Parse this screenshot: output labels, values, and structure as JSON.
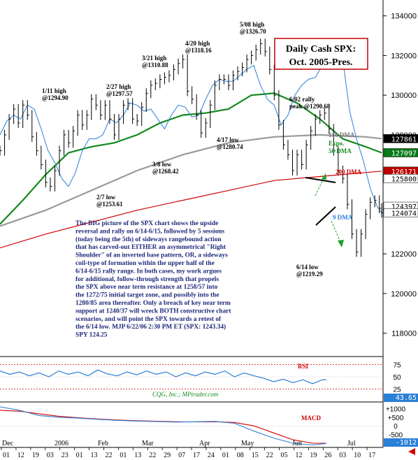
{
  "chart_data": {
    "type": "line",
    "title": "Daily Cash SPX:",
    "subtitle": "Oct. 2005-Pres.",
    "price_axis": {
      "ylim": [
        11700,
        13480
      ],
      "ticks": [
        {
          "v": 13400,
          "t": "134000"
        },
        {
          "v": 13200,
          "t": "132000"
        },
        {
          "v": 13000,
          "t": "130000"
        },
        {
          "v": 12800,
          "t": "128000"
        },
        {
          "v": 12200,
          "t": "122000"
        },
        {
          "v": 12000,
          "t": "120000"
        },
        {
          "v": 11800,
          "t": "118000"
        }
      ],
      "tags": [
        {
          "v": 12781,
          "t": "127861",
          "bg": "#000000",
          "fg": "#ffffff"
        },
        {
          "v": 12710,
          "t": "127097",
          "bg": "#0a7a1a",
          "fg": "#ffffff"
        },
        {
          "v": 12617,
          "t": "126171",
          "bg": "#c00000",
          "fg": "#ffffff"
        },
        {
          "v": 12580,
          "t": "125800",
          "bg": "#ffffff",
          "fg": "#000000"
        },
        {
          "v": 12440,
          "t": "124397",
          "bg": "#ffffff",
          "fg": "#000000"
        },
        {
          "v": 12407,
          "t": "124074",
          "bg": "#ffffff",
          "fg": "#000000"
        }
      ]
    },
    "series": [
      {
        "name": "150 DMA",
        "color": "#9a9a9a",
        "x": [
          0,
          20,
          40,
          60,
          80,
          100,
          120,
          140,
          160,
          167
        ],
        "y": [
          12340,
          12420,
          12520,
          12620,
          12700,
          12760,
          12790,
          12800,
          12790,
          12781
        ]
      },
      {
        "name": "Expo. 50 DMA",
        "color": "#138a1e",
        "x": [
          0,
          10,
          20,
          30,
          40,
          50,
          60,
          70,
          80,
          90,
          100,
          110,
          120,
          130,
          140,
          150,
          160,
          167
        ],
        "y": [
          12350,
          12470,
          12600,
          12710,
          12740,
          12760,
          12800,
          12860,
          12900,
          12910,
          12930,
          13000,
          13010,
          12960,
          12880,
          12780,
          12740,
          12710
        ]
      },
      {
        "name": "200 DMA",
        "color": "#d00000",
        "x": [
          0,
          20,
          40,
          60,
          80,
          100,
          120,
          140,
          160,
          167
        ],
        "y": [
          12230,
          12300,
          12360,
          12420,
          12470,
          12520,
          12570,
          12590,
          12610,
          12617
        ]
      },
      {
        "name": "9 DMA",
        "color": "#2a7fd6",
        "x": [
          0,
          3,
          6,
          9,
          12,
          15,
          18,
          21,
          24,
          27,
          30,
          33,
          36,
          39,
          42,
          45,
          48,
          51,
          54,
          57,
          60,
          63,
          66,
          69,
          72,
          75,
          78,
          81,
          84,
          87,
          90,
          93,
          96,
          99,
          102,
          105,
          108,
          111,
          114,
          117,
          120,
          123,
          126,
          129,
          132,
          135,
          138,
          141,
          144,
          147,
          150,
          153,
          156,
          159,
          162,
          165,
          167
        ],
        "y": [
          12800,
          12870,
          12900,
          12880,
          12950,
          12930,
          12830,
          12720,
          12660,
          12580,
          12540,
          12610,
          12720,
          12780,
          12780,
          12800,
          12880,
          12860,
          12900,
          12960,
          12950,
          12920,
          12930,
          12880,
          12830,
          12900,
          12950,
          12940,
          12890,
          12900,
          12980,
          13050,
          13080,
          13070,
          13070,
          13100,
          13130,
          13150,
          13050,
          12980,
          12950,
          12850,
          12900,
          13000,
          13050,
          13080,
          13090,
          13150,
          13200,
          13230,
          13180,
          12920,
          12780,
          12670,
          12530,
          12440,
          12407
        ]
      }
    ],
    "price_x": [
      0,
      2,
      4,
      6,
      8,
      10,
      12,
      14,
      16,
      18,
      20,
      22,
      24,
      26,
      28,
      30,
      32,
      34,
      36,
      38,
      40,
      42,
      44,
      46,
      48,
      50,
      52,
      54,
      56,
      58,
      60,
      62,
      64,
      66,
      68,
      70,
      72,
      74,
      76,
      78,
      80,
      82,
      84,
      86,
      88,
      90,
      92,
      94,
      96,
      98,
      100,
      102,
      104,
      106,
      108,
      110,
      112,
      114,
      116,
      118,
      120,
      122,
      124,
      126,
      128,
      130,
      132,
      134,
      136,
      138,
      140,
      142,
      144,
      146,
      148,
      150,
      152,
      154,
      156,
      158,
      160,
      162,
      164,
      166,
      167
    ],
    "price_y": [
      12720,
      12800,
      12880,
      12930,
      12860,
      12950,
      12900,
      12790,
      12720,
      12650,
      12560,
      12540,
      12620,
      12720,
      12800,
      12760,
      12820,
      12900,
      12850,
      12900,
      12980,
      12950,
      12900,
      12950,
      12880,
      12800,
      12880,
      12950,
      12960,
      12880,
      12870,
      12940,
      13010,
      13050,
      13060,
      13080,
      13090,
      13100,
      13130,
      13160,
      13180,
      13020,
      12980,
      12900,
      12810,
      12860,
      12950,
      13050,
      13080,
      13080,
      13050,
      13100,
      13120,
      13140,
      13180,
      13200,
      13230,
      13260,
      13220,
      13130,
      13000,
      12850,
      12750,
      12700,
      12620,
      12700,
      12650,
      12750,
      12820,
      12880,
      12900,
      12910,
      12830,
      12720,
      12620,
      12580,
      12450,
      12300,
      12210,
      12300,
      12400,
      12460,
      12470,
      12430,
      12407
    ],
    "time_axis": {
      "months": [
        "Dec",
        "2006",
        "Feb",
        "Mar",
        "Apr",
        "May",
        "Jun",
        "Jul"
      ],
      "days": [
        "01",
        "12",
        "19",
        "03",
        "23",
        "01",
        "13",
        "22",
        "01",
        "13",
        "22",
        "29",
        "07",
        "17",
        "24",
        "01",
        "08",
        "15",
        "22",
        "05",
        "12",
        "19",
        "26",
        "03",
        "10",
        "17"
      ]
    },
    "annotations": [
      {
        "t": "5/08 high",
        "t2": "@1326.70",
        "color": "#d00000"
      },
      {
        "t": "4/20 high",
        "t2": "@1318.16",
        "color": "#d00000"
      },
      {
        "t": "3/21 high",
        "t2": "@1310.88",
        "color": "#d00000"
      },
      {
        "t": "2/27 high",
        "t2": "@1297.57",
        "color": "#d00000"
      },
      {
        "t": "1/11 high",
        "t2": "@1294.90",
        "color": "#d00000"
      },
      {
        "t": "6/02 rally",
        "t2": "peak @1290.68",
        "color": "#d00000"
      },
      {
        "t": "4/17 low",
        "t2": "@1280.74",
        "color": "#d00000"
      },
      {
        "t": "3/8 low",
        "t2": "@1268.42",
        "color": "#d00000"
      },
      {
        "t": "2/7 low",
        "t2": "@1253.61",
        "color": "#d00000"
      },
      {
        "t": "6/14 low",
        "t2": "@1219.29",
        "color": "#d00000"
      }
    ],
    "ma_labels": {
      "dma150": "150 DMA",
      "expo": "Expo.",
      "dma50": "50 DMA",
      "dma200": "200 DMA",
      "dma9": "9 DMA"
    },
    "commentary": [
      "The BIG picture of the SPX chart shows the upside",
      "reversal and rally on 6/14-6/15, followed by 5 sessions",
      "(today being the 5th) of sideways rangebound action",
      "that has carved-out EITHER an asymmetrical \"Right",
      "Shoulder\" of an inverted base pattern, OR, a sideways",
      "coil-type of formation within the upper half of the",
      "6/14-6/15 rally range. In both cases, my work argues",
      "for additional, follow-through strength that propels",
      "the SPX above near term resistance at 1258/57 into",
      "the 1272/75 initial target zone, and possibly into the",
      "1280/85 area thereafter. Only a breach of key near term",
      "support at 1240/37 will wreck BOTH constructive chart",
      "scenarios, and will point the SPX towards a retest of",
      "the 6/14 low.  MJP 6/22/06  2:30 PM ET (SPX: 1243.34)",
      "SPY 124.25"
    ],
    "rsi": {
      "label": "RSI",
      "credit": "CQG, Inc.; MPtrader.com",
      "ticks": [
        {
          "v": 75,
          "t": "75"
        },
        {
          "v": 50,
          "t": "50"
        },
        {
          "v": 25,
          "t": "25"
        }
      ],
      "current": "43.65",
      "ylim": [
        0,
        90
      ],
      "x": [
        0,
        5,
        10,
        15,
        20,
        25,
        30,
        35,
        40,
        45,
        50,
        55,
        60,
        65,
        70,
        75,
        80,
        85,
        90,
        95,
        100,
        105,
        110,
        115,
        120,
        125,
        130,
        135,
        140,
        145,
        150,
        155,
        160,
        165,
        167
      ],
      "values": [
        62,
        55,
        60,
        52,
        58,
        50,
        62,
        55,
        60,
        52,
        64,
        56,
        52,
        60,
        54,
        62,
        55,
        60,
        50,
        58,
        52,
        60,
        55,
        62,
        50,
        58,
        52,
        47,
        40,
        45,
        38,
        44,
        36,
        44,
        43.65
      ]
    },
    "macd": {
      "label": "MACD",
      "ticks": [
        {
          "v": 1000,
          "t": "+1000"
        },
        {
          "v": 500,
          "t": "+500"
        },
        {
          "v": 0,
          "t": "0"
        },
        {
          "v": -500,
          "t": "-500"
        }
      ],
      "current": "-1012",
      "ylim": [
        -1200,
        1300
      ],
      "x": [
        0,
        10,
        20,
        30,
        40,
        50,
        60,
        70,
        80,
        90,
        100,
        110,
        120,
        130,
        140,
        150,
        160,
        167
      ],
      "macd": [
        1100,
        900,
        600,
        500,
        450,
        380,
        320,
        280,
        250,
        220,
        240,
        260,
        150,
        -300,
        -700,
        -1000,
        -1100,
        -1012
      ],
      "signal": [
        900,
        850,
        700,
        560,
        470,
        400,
        340,
        300,
        270,
        240,
        230,
        240,
        200,
        0,
        -400,
        -800,
        -1000,
        -1000
      ]
    }
  },
  "colors": {
    "accent_red": "#d00000",
    "ma_green": "#138a1e",
    "ma_blue": "#2a7fd6",
    "ma_gray": "#9a9a9a",
    "commentary": "#1f2a7a",
    "arrow": "#1aa32a",
    "footer_arrow": "#d00000"
  },
  "footer_arrow_icon": "left-arrow-icon"
}
